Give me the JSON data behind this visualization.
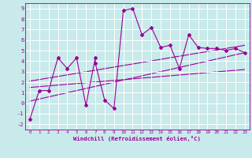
{
  "bg_color": "#c8eaea",
  "grid_color": "#ffffff",
  "line_color": "#990099",
  "xlim": [
    -0.5,
    23.5
  ],
  "ylim": [
    -2.5,
    9.5
  ],
  "xticks": [
    0,
    1,
    2,
    3,
    4,
    5,
    6,
    7,
    8,
    9,
    10,
    11,
    12,
    13,
    14,
    15,
    16,
    17,
    18,
    19,
    20,
    21,
    22,
    23
  ],
  "yticks": [
    -2,
    -1,
    0,
    1,
    2,
    3,
    4,
    5,
    6,
    7,
    8,
    9
  ],
  "xlabel": "Windchill (Refroidissement éolien,°C)",
  "series": [
    [
      0,
      -1.5
    ],
    [
      1,
      1.2
    ],
    [
      2,
      1.2
    ],
    [
      3,
      4.3
    ],
    [
      4,
      3.3
    ],
    [
      5,
      4.3
    ],
    [
      6,
      -0.2
    ],
    [
      7,
      4.3
    ],
    [
      7,
      3.8
    ],
    [
      8,
      0.3
    ],
    [
      9,
      -0.5
    ],
    [
      10,
      8.8
    ],
    [
      11,
      9.0
    ],
    [
      12,
      6.5
    ],
    [
      13,
      7.2
    ],
    [
      14,
      5.3
    ],
    [
      15,
      5.5
    ],
    [
      16,
      3.3
    ],
    [
      17,
      6.5
    ],
    [
      18,
      5.3
    ],
    [
      19,
      5.2
    ],
    [
      20,
      5.2
    ],
    [
      21,
      5.0
    ],
    [
      22,
      5.2
    ],
    [
      23,
      4.8
    ]
  ],
  "line1_x": [
    0,
    23
  ],
  "line1_y": [
    1.5,
    3.2
  ],
  "line2_x": [
    0,
    23
  ],
  "line2_y": [
    0.2,
    4.8
  ],
  "line3_x": [
    0,
    23
  ],
  "line3_y": [
    2.1,
    5.5
  ]
}
